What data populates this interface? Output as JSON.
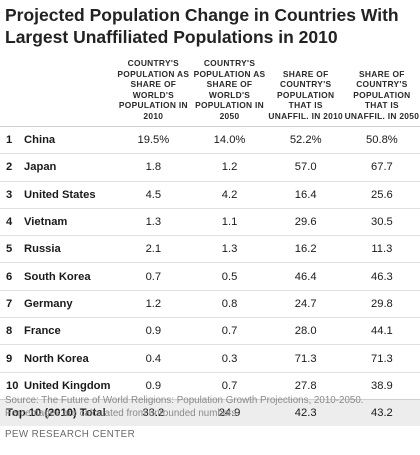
{
  "title": "Projected Population Change in Countries With Largest Unaffiliated Populations in 2010",
  "columns": [
    "COUNTRY'S POPULATION AS SHARE OF WORLD'S POPULATION IN 2010",
    "COUNTRY'S POPULATION AS SHARE OF WORLD'S POPULATION IN 2050",
    "SHARE OF COUNTRY'S POPULATION THAT IS UNAFFIL. IN 2010",
    "SHARE OF COUNTRY'S POPULATION THAT IS UNAFFIL. IN 2050"
  ],
  "rows": [
    {
      "rank": "1",
      "country": "China",
      "values": [
        "19.5%",
        "14.0%",
        "52.2%",
        "50.8%"
      ]
    },
    {
      "rank": "2",
      "country": "Japan",
      "values": [
        "1.8",
        "1.2",
        "57.0",
        "67.7"
      ]
    },
    {
      "rank": "3",
      "country": "United States",
      "values": [
        "4.5",
        "4.2",
        "16.4",
        "25.6"
      ]
    },
    {
      "rank": "4",
      "country": "Vietnam",
      "values": [
        "1.3",
        "1.1",
        "29.6",
        "30.5"
      ]
    },
    {
      "rank": "5",
      "country": "Russia",
      "values": [
        "2.1",
        "1.3",
        "16.2",
        "11.3"
      ]
    },
    {
      "rank": "6",
      "country": "South Korea",
      "values": [
        "0.7",
        "0.5",
        "46.4",
        "46.3"
      ]
    },
    {
      "rank": "7",
      "country": "Germany",
      "values": [
        "1.2",
        "0.8",
        "24.7",
        "29.8"
      ]
    },
    {
      "rank": "8",
      "country": "France",
      "values": [
        "0.9",
        "0.7",
        "28.0",
        "44.1"
      ]
    },
    {
      "rank": "9",
      "country": "North Korea",
      "values": [
        "0.4",
        "0.3",
        "71.3",
        "71.3"
      ]
    },
    {
      "rank": "10",
      "country": "United Kingdom",
      "values": [
        "0.9",
        "0.7",
        "27.8",
        "38.9"
      ]
    }
  ],
  "total": {
    "label": "Top 10 (2010) Total",
    "values": [
      "33.2",
      "24.9",
      "42.3",
      "43.2"
    ]
  },
  "source_lines": [
    "Source: The Future of World Religions: Population Growth Projections, 2010-2050.",
    "Percentages are calculated from unrounded numbers."
  ],
  "credit": "PEW RESEARCH CENTER"
}
